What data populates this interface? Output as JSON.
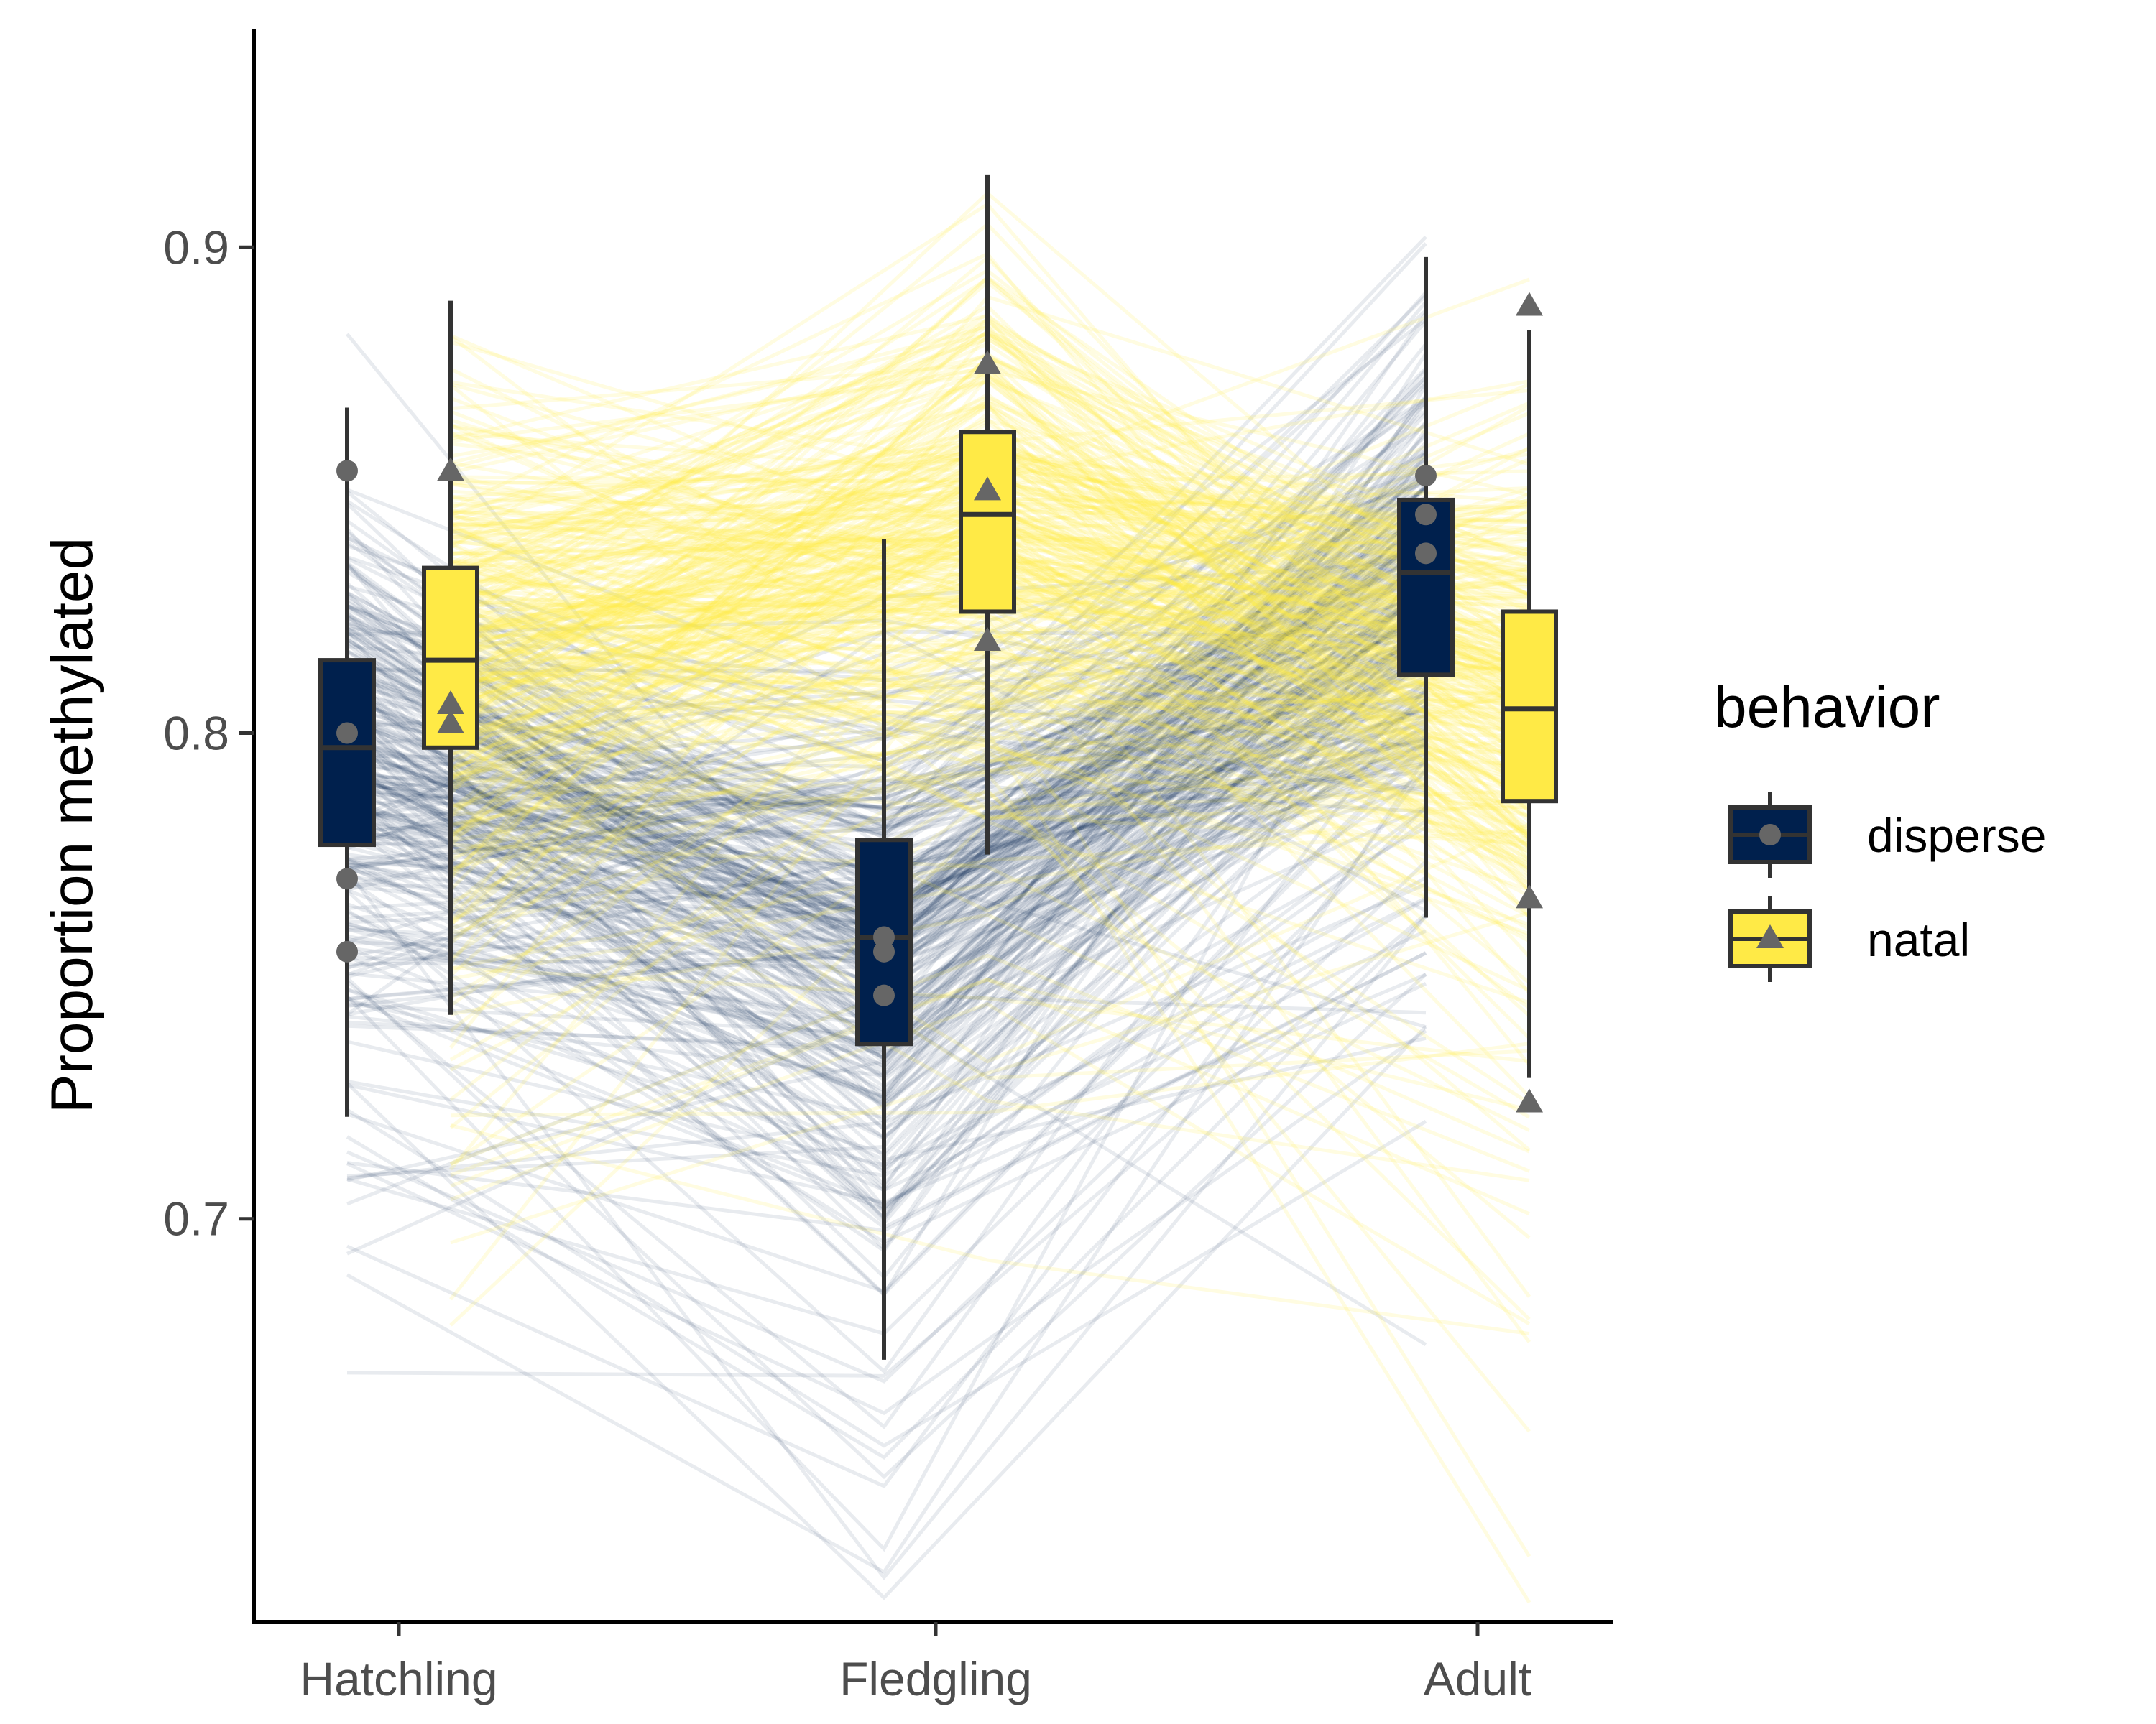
{
  "chart_data": {
    "type": "box",
    "xlabel": "",
    "ylabel": "Proportion methylated",
    "ylim": [
      0.617,
      0.945
    ],
    "yticks": [
      0.7,
      0.8,
      0.9
    ],
    "ytick_labels": [
      "0.7",
      "0.8",
      "0.9"
    ],
    "categories": [
      "Hatchling",
      "Fledgling",
      "Adult"
    ],
    "legend": {
      "title": "behavior",
      "position": "right",
      "entries": [
        "disperse",
        "natal"
      ]
    },
    "series": [
      {
        "name": "disperse",
        "color": "#00204d",
        "marker": "circle",
        "boxes": [
          {
            "category": "Hatchling",
            "min": 0.721,
            "q1": 0.777,
            "median": 0.797,
            "q3": 0.815,
            "max": 0.867,
            "points": [
              0.854,
              0.8,
              0.77,
              0.755
            ]
          },
          {
            "category": "Fledgling",
            "min": 0.671,
            "q1": 0.736,
            "median": 0.758,
            "q3": 0.778,
            "max": 0.84,
            "points": [
              0.758,
              0.755,
              0.746
            ]
          },
          {
            "category": "Adult",
            "min": 0.762,
            "q1": 0.812,
            "median": 0.833,
            "q3": 0.848,
            "max": 0.898,
            "points": [
              0.853,
              0.845,
              0.837
            ]
          }
        ]
      },
      {
        "name": "natal",
        "color": "#ffea46",
        "marker": "triangle",
        "boxes": [
          {
            "category": "Hatchling",
            "min": 0.742,
            "q1": 0.797,
            "median": 0.815,
            "q3": 0.834,
            "max": 0.889,
            "points": [
              0.854,
              0.806,
              0.802
            ]
          },
          {
            "category": "Fledgling",
            "min": 0.775,
            "q1": 0.825,
            "median": 0.845,
            "q3": 0.862,
            "max": 0.915,
            "points": [
              0.876,
              0.85,
              0.819
            ]
          },
          {
            "category": "Adult",
            "min": 0.729,
            "q1": 0.786,
            "median": 0.805,
            "q3": 0.825,
            "max": 0.883,
            "points": [
              0.888,
              0.766,
              0.724
            ]
          }
        ]
      }
    ],
    "trajectories": {
      "description_free": true,
      "disperse": {
        "color": "#00204d",
        "groups": [
          {
            "count": 260,
            "h": [
              0.797,
              0.026
            ],
            "f": [
              0.758,
              0.028
            ],
            "a": [
              0.83,
              0.026
            ]
          },
          {
            "count": 35,
            "h": [
              0.72,
              0.035
            ],
            "f": [
              0.68,
              0.035
            ],
            "a": [
              0.78,
              0.04
            ]
          }
        ]
      },
      "natal": {
        "color": "#ffea46",
        "groups": [
          {
            "count": 300,
            "h": [
              0.815,
              0.028
            ],
            "f": [
              0.845,
              0.028
            ],
            "a": [
              0.805,
              0.028
            ]
          },
          {
            "count": 30,
            "h": [
              0.74,
              0.035
            ],
            "f": [
              0.78,
              0.04
            ],
            "a": [
              0.72,
              0.04
            ]
          }
        ]
      }
    }
  }
}
